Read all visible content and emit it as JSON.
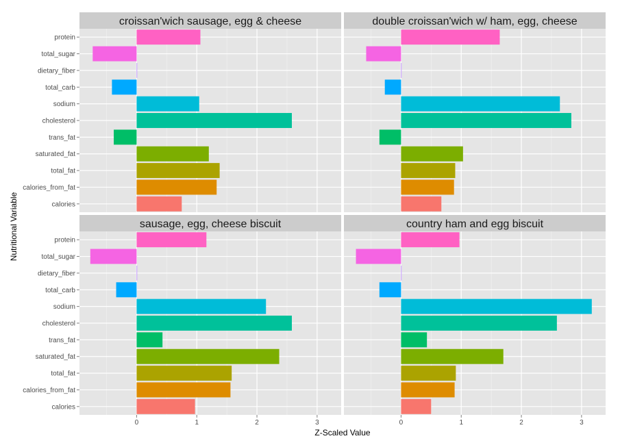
{
  "chart_data": {
    "type": "bar",
    "orientation": "horizontal",
    "layout": "facet-grid-2x2",
    "xlabel": "Z-Scaled Value",
    "ylabel": "Nutritional Variable",
    "xlim": [
      -0.95,
      3.4
    ],
    "x_ticks": [
      0,
      1,
      2,
      3
    ],
    "grid": true,
    "legend": "none",
    "categories": [
      "protein",
      "total_sugar",
      "dietary_fiber",
      "total_carb",
      "sodium",
      "cholesterol",
      "trans_fat",
      "saturated_fat",
      "total_fat",
      "calories_from_fat",
      "calories"
    ],
    "colors": {
      "protein": "#FF61C3",
      "total_sugar": "#F564E3",
      "dietary_fiber": "#B983FF",
      "total_carb": "#00A9FF",
      "sodium": "#00BCD8",
      "cholesterol": "#00C19A",
      "trans_fat": "#00BE67",
      "saturated_fat": "#7CAE00",
      "total_fat": "#ABA300",
      "calories_from_fat": "#DE8C00",
      "calories": "#F8766D"
    },
    "panels": [
      {
        "title": "croissan'wich sausage, egg & cheese",
        "values": [
          1.06,
          -0.73,
          0.0,
          -0.41,
          1.04,
          2.58,
          -0.38,
          1.2,
          1.38,
          1.33,
          0.75
        ]
      },
      {
        "title": "double croissan'wich w/ ham, egg, cheese",
        "values": [
          1.64,
          -0.58,
          0.0,
          -0.27,
          2.64,
          2.83,
          -0.36,
          1.03,
          0.9,
          0.88,
          0.67
        ]
      },
      {
        "title": "sausage, egg, cheese biscuit",
        "values": [
          1.16,
          -0.77,
          0.0,
          -0.34,
          2.15,
          2.58,
          0.43,
          2.37,
          1.58,
          1.56,
          0.97
        ]
      },
      {
        "title": "country ham and egg biscuit",
        "values": [
          0.97,
          -0.75,
          0.0,
          -0.36,
          3.17,
          2.59,
          0.43,
          1.7,
          0.91,
          0.89,
          0.5
        ]
      }
    ]
  }
}
